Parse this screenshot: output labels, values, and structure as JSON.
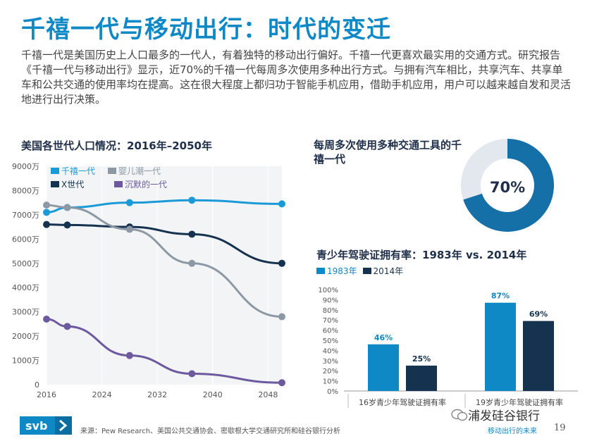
{
  "page": {
    "title": "千禧一代与移动出行：时代的变迁",
    "intro": "千禧一代是美国历史上人口最多的一代人，有着独特的移动出行偏好。千禧一代更喜欢最实用的交通方式。研究报告《千禧一代与移动出行》显示，近70%的千禧一代每周多次使用多种出行方式。与拥有汽车相比，共享汽车、共享单车和公共交通的使用率均在提高。这在很大程度上都归功于智能手机应用，借助手机应用，用户可以越来越自发和灵活地进行出行决策。",
    "source": "来源：Pew Research、美国公共交通协会、密歇根大学交通研究所和硅谷银行分析",
    "footer_right": "移动出行的未来",
    "page_number": "19",
    "logo_text": "svb",
    "watermark": "浦发硅谷银行"
  },
  "colors": {
    "title_blue": "#0f88c6",
    "millennial": "#1a9ad6",
    "genx": "#15324f",
    "boomer": "#8c99a5",
    "silent": "#6d5a9e",
    "bar1983": "#0f88c6",
    "bar2014": "#15324f",
    "donut": "#1670a8",
    "donut_rest": "#e3e8ee",
    "logo_bg": "#0f88c6"
  },
  "chart_data": [
    {
      "type": "line",
      "title": "美国各世代人口情况：2016年–2050年",
      "ylim": [
        0,
        9000
      ],
      "yticks": [
        "0",
        "1000万",
        "2000万",
        "3000万",
        "4000万",
        "5000万",
        "6000万",
        "7000万",
        "8000万",
        "9000万"
      ],
      "xlim": [
        2016,
        2050
      ],
      "xticks": [
        "2016",
        "2024",
        "2032",
        "2040",
        "2048"
      ],
      "legend_position": "top-left",
      "series": [
        {
          "name": "千禧一代",
          "color_key": "millennial",
          "x": [
            2016,
            2019,
            2028,
            2037,
            2050
          ],
          "values": [
            7100,
            7300,
            7500,
            7600,
            7450
          ]
        },
        {
          "name": "X世代",
          "color_key": "genx",
          "x": [
            2016,
            2019,
            2028,
            2037,
            2050
          ],
          "values": [
            6600,
            6580,
            6500,
            6200,
            5000
          ]
        },
        {
          "name": "婴儿潮一代",
          "color_key": "boomer",
          "x": [
            2016,
            2019,
            2028,
            2037,
            2050
          ],
          "values": [
            7400,
            7300,
            6400,
            5000,
            2800
          ]
        },
        {
          "name": "沉默的一代",
          "color_key": "silent",
          "x": [
            2016,
            2019,
            2028,
            2037,
            2050
          ],
          "values": [
            2700,
            2400,
            1200,
            450,
            80
          ]
        }
      ]
    },
    {
      "type": "pie",
      "title": "每周多次使用多种交通工具的千禧一代",
      "values": [
        70,
        30
      ],
      "center_label": "70%"
    },
    {
      "type": "bar",
      "title": "青少年驾驶证拥有率：1983年 vs. 2014年",
      "categories": [
        "16岁青少年驾驶证拥有率",
        "19岁青少年驾驶证拥有率"
      ],
      "ylim": [
        0,
        100
      ],
      "yticks": [
        "0%",
        "10%",
        "20%",
        "30%",
        "40%",
        "50%",
        "60%",
        "70%",
        "80%",
        "90%",
        "100%"
      ],
      "series": [
        {
          "name": "1983年",
          "color_key": "bar1983",
          "values": [
            46,
            87
          ],
          "labels": [
            "46%",
            "87%"
          ]
        },
        {
          "name": "2014年",
          "color_key": "bar2014",
          "values": [
            25,
            69
          ],
          "labels": [
            "25%",
            "69%"
          ]
        }
      ]
    }
  ]
}
